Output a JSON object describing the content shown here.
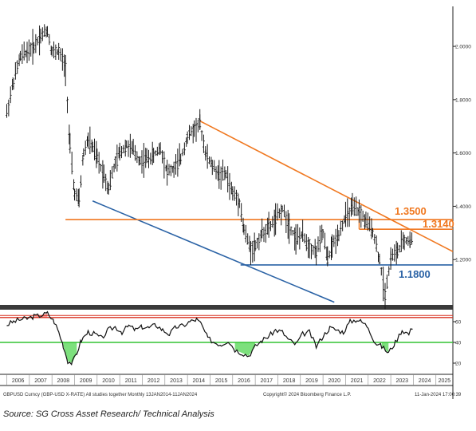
{
  "chart_data": [
    {
      "type": "ohlc",
      "panel": "price",
      "ylim": [
        1.03,
        2.15
      ],
      "y_ticks": [
        "2.0000",
        "1.8000",
        "1.6000",
        "1.4000",
        "1.2000"
      ],
      "y_tick_values": [
        2.0,
        1.8,
        1.6,
        1.4,
        1.2
      ],
      "x_ticks": [
        "2006",
        "2007",
        "2008",
        "2009",
        "2010",
        "2011",
        "2012",
        "2013",
        "2014",
        "2015",
        "2016",
        "2017",
        "2018",
        "2019",
        "2020",
        "2021",
        "2022",
        "2023",
        "2024",
        "2025"
      ],
      "x_tick_values": [
        2006,
        2007,
        2008,
        2009,
        2010,
        2011,
        2012,
        2013,
        2014,
        2015,
        2016,
        2017,
        2018,
        2019,
        2020,
        2021,
        2022,
        2023,
        2024,
        2025
      ],
      "xlim": [
        2005.7,
        2025.75
      ],
      "series": [
        {
          "x": [
            2006.0,
            2006.3,
            2006.6,
            2006.9,
            2007.2,
            2007.5,
            2007.8,
            2008.0,
            2008.3,
            2008.6,
            2008.8,
            2009.0,
            2009.2,
            2009.4,
            2009.6,
            2009.8,
            2010.0,
            2010.3,
            2010.5,
            2010.8,
            2011.0,
            2011.3,
            2011.6,
            2011.9,
            2012.2,
            2012.5,
            2012.8,
            2013.1,
            2013.4,
            2013.7,
            2014.0,
            2014.3,
            2014.55,
            2014.8,
            2015.1,
            2015.4,
            2015.7,
            2016.0,
            2016.3,
            2016.5,
            2016.8,
            2017.0,
            2017.3,
            2017.6,
            2017.9,
            2018.2,
            2018.5,
            2018.8,
            2019.1,
            2019.4,
            2019.7,
            2020.0,
            2020.2,
            2020.4,
            2020.7,
            2021.0,
            2021.3,
            2021.6,
            2021.9,
            2022.2,
            2022.5,
            2022.75,
            2023.0,
            2023.3,
            2023.6,
            2023.85,
            2024.0
          ],
          "values": [
            1.75,
            1.87,
            1.96,
            1.98,
            2.0,
            2.04,
            2.06,
            1.98,
            1.98,
            1.92,
            1.62,
            1.45,
            1.42,
            1.6,
            1.65,
            1.62,
            1.58,
            1.52,
            1.47,
            1.56,
            1.6,
            1.63,
            1.61,
            1.57,
            1.58,
            1.59,
            1.62,
            1.53,
            1.54,
            1.58,
            1.66,
            1.69,
            1.71,
            1.6,
            1.55,
            1.52,
            1.52,
            1.45,
            1.42,
            1.31,
            1.24,
            1.25,
            1.3,
            1.32,
            1.35,
            1.39,
            1.33,
            1.28,
            1.29,
            1.25,
            1.23,
            1.3,
            1.2,
            1.25,
            1.3,
            1.36,
            1.39,
            1.38,
            1.34,
            1.31,
            1.2,
            1.07,
            1.21,
            1.23,
            1.27,
            1.27,
            1.27
          ]
        }
      ],
      "annotations": [
        {
          "label": "1.3500",
          "value": 1.35,
          "color": "#f07820"
        },
        {
          "label": "1.3140",
          "value": 1.314,
          "color": "#f07820"
        },
        {
          "label": "1.1800",
          "value": 1.18,
          "color": "#2a62a5"
        }
      ],
      "trendlines": [
        {
          "color": "#f07820",
          "from": [
            2014.55,
            1.72
          ],
          "to": [
            2025.75,
            1.23
          ]
        },
        {
          "color": "#2a62a5",
          "from": [
            2009.8,
            1.42
          ],
          "to": [
            2020.5,
            1.04
          ]
        },
        {
          "color": "#2a62a5",
          "from": [
            2016.35,
            1.18
          ],
          "to": [
            2025.75,
            1.18
          ]
        },
        {
          "color": "#f07820",
          "from": [
            2008.6,
            1.35
          ],
          "to": [
            2025.75,
            1.35
          ]
        },
        {
          "color": "#f07820",
          "from": [
            2021.6,
            1.314
          ],
          "to": [
            2025.75,
            1.314
          ]
        }
      ]
    },
    {
      "type": "line",
      "panel": "oscillator",
      "ylim": [
        10,
        70
      ],
      "y_ticks": [
        "60",
        "40",
        "20"
      ],
      "y_tick_values": [
        60,
        40,
        20
      ],
      "levels": [
        {
          "value": 64,
          "color": "#d83020"
        },
        {
          "value": 40,
          "color": "#33c433"
        }
      ],
      "series": [
        {
          "x": [
            2006.0,
            2006.3,
            2006.6,
            2006.9,
            2007.2,
            2007.5,
            2007.8,
            2008.1,
            2008.3,
            2008.5,
            2008.7,
            2008.9,
            2009.1,
            2009.3,
            2009.6,
            2009.9,
            2010.2,
            2010.5,
            2010.8,
            2011.1,
            2011.4,
            2011.7,
            2012.0,
            2012.3,
            2012.6,
            2012.9,
            2013.2,
            2013.5,
            2013.8,
            2014.1,
            2014.4,
            2014.6,
            2014.9,
            2015.2,
            2015.5,
            2015.8,
            2016.1,
            2016.4,
            2016.7,
            2017.0,
            2017.3,
            2017.6,
            2017.9,
            2018.2,
            2018.5,
            2018.8,
            2019.1,
            2019.4,
            2019.7,
            2020.0,
            2020.3,
            2020.6,
            2020.9,
            2021.2,
            2021.5,
            2021.7,
            2022.0,
            2022.3,
            2022.6,
            2022.9,
            2023.2,
            2023.5,
            2023.8,
            2024.0
          ],
          "values": [
            57,
            60,
            62,
            63,
            65,
            66,
            68,
            60,
            50,
            37,
            22,
            20,
            30,
            42,
            50,
            48,
            44,
            52,
            55,
            50,
            56,
            52,
            55,
            54,
            57,
            52,
            48,
            55,
            56,
            60,
            62,
            58,
            44,
            40,
            38,
            42,
            33,
            30,
            27,
            36,
            42,
            46,
            52,
            50,
            42,
            38,
            48,
            50,
            36,
            46,
            54,
            52,
            50,
            60,
            62,
            60,
            55,
            40,
            36,
            30,
            40,
            52,
            48,
            56
          ]
        }
      ]
    }
  ],
  "bottom_axis_labels": {
    "left": "GBPUSD Curncy (GBP-USD X-RATE)  All studies together  Monthly  13JAN2014-11JAN2024",
    "center": "Copyright© 2024 Bloomberg Finance L.P.",
    "right": "11-Jan-2024 17:00:39"
  },
  "source_note": "Source: SG Cross Asset Research/ Technical Analysis",
  "colors": {
    "price_bar": "#1a1a1a",
    "resistance": "#f07820",
    "support": "#2a62a5",
    "oscillator_upper": "#d83020",
    "oscillator_lower": "#33c433",
    "overbought_fill": "#f39a9a",
    "oversold_fill": "#7de07d"
  }
}
